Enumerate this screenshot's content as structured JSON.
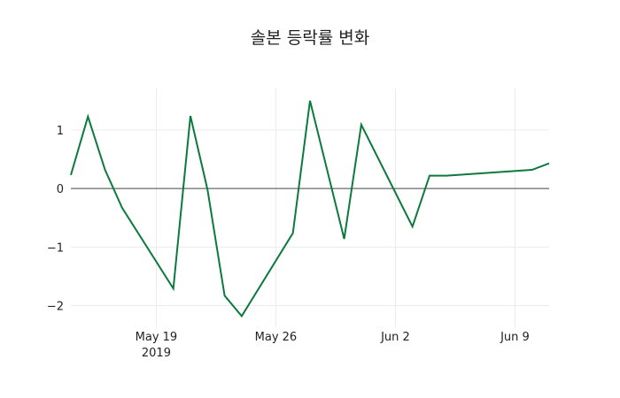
{
  "chart_data": {
    "type": "line",
    "title": "솔본 등락률 변화",
    "xlabel": "",
    "ylabel": "",
    "x": [
      "2019-05-14",
      "2019-05-15",
      "2019-05-16",
      "2019-05-17",
      "2019-05-20",
      "2019-05-21",
      "2019-05-22",
      "2019-05-23",
      "2019-05-24",
      "2019-05-27",
      "2019-05-28",
      "2019-05-30",
      "2019-05-31",
      "2019-06-03",
      "2019-06-04",
      "2019-06-05",
      "2019-06-10",
      "2019-06-11"
    ],
    "series": [
      {
        "name": "등락률",
        "color": "#0b7a3c",
        "values": [
          0.23,
          1.23,
          0.32,
          -0.33,
          -1.71,
          1.24,
          -0.02,
          -1.83,
          -2.18,
          -0.76,
          1.5,
          -0.86,
          1.09,
          -0.65,
          0.22,
          0.22,
          0.32,
          0.43
        ]
      }
    ],
    "ylim": [
      -2.37,
      1.71
    ],
    "xlim": [
      "2019-05-14",
      "2019-06-11"
    ],
    "yticks": [
      1,
      0,
      -1,
      -2
    ],
    "ytick_labels": [
      "1",
      "0",
      "−1",
      "−2"
    ],
    "xticks": [
      "2019-05-19",
      "2019-05-26",
      "2019-06-02",
      "2019-06-09"
    ],
    "xtick_labels": [
      "May 19",
      "May 26",
      "Jun 2",
      "Jun 9"
    ],
    "xtick_sublabel": "2019",
    "grid": true,
    "zeroline": true,
    "legend": false
  }
}
